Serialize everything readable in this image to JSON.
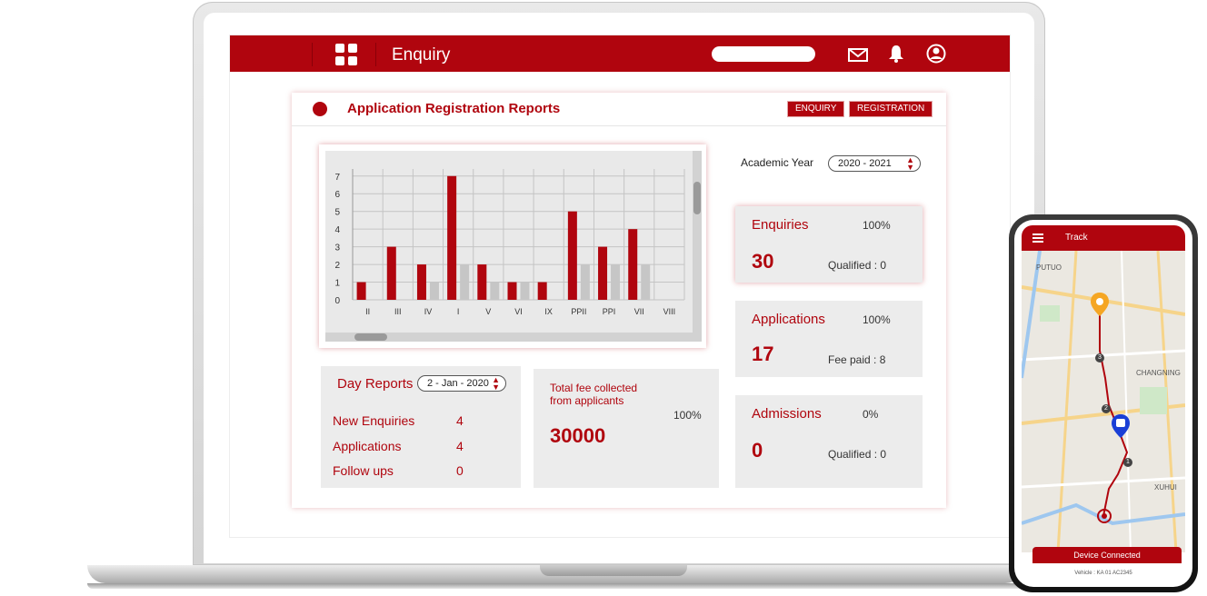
{
  "header": {
    "title": "Enquiry",
    "search_placeholder": ""
  },
  "card": {
    "title": "Application Registration Reports",
    "buttons": {
      "enquiry": "ENQUIRY",
      "registration": "REGISTRATION"
    }
  },
  "academic_year": {
    "label": "Academic Year",
    "value": "2020 - 2021"
  },
  "chart_data": {
    "type": "bar",
    "categories": [
      "II",
      "III",
      "IV",
      "I",
      "V",
      "VI",
      "IX",
      "PPII",
      "PPI",
      "VII",
      "VIII"
    ],
    "series": [
      {
        "values": [
          1,
          3,
          2,
          7,
          2,
          1,
          1,
          5,
          3,
          4,
          0
        ],
        "color": "#b0050e"
      },
      {
        "values": [
          0,
          0,
          1,
          2,
          1,
          1,
          0,
          2,
          2,
          2,
          0
        ],
        "color": "#c6c6c6"
      }
    ],
    "y_ticks": [
      "0",
      "1",
      "2",
      "3",
      "4",
      "5",
      "6",
      "7"
    ],
    "ylim": [
      0,
      7.4
    ],
    "grid": true
  },
  "stats": {
    "enquiries": {
      "label": "Enquiries",
      "pct": "100%",
      "value": "30",
      "sub": "Qualified : 0"
    },
    "applications": {
      "label": "Applications",
      "pct": "100%",
      "value": "17",
      "sub": "Fee paid : 8"
    },
    "admissions": {
      "label": "Admissions",
      "pct": "0%",
      "value": "0",
      "sub": "Qualified : 0"
    }
  },
  "day_reports": {
    "title": "Day Reports",
    "date": "2 - Jan - 2020",
    "rows": [
      {
        "label": "New Enquiries",
        "value": "4"
      },
      {
        "label": "Applications",
        "value": "4"
      },
      {
        "label": "Follow ups",
        "value": "0"
      }
    ]
  },
  "fee": {
    "label": "Total fee collected from applicants",
    "pct": "100%",
    "value": "30000"
  },
  "phone": {
    "title": "Track",
    "map_labels": [
      "PUTUO",
      "CHANGNING",
      "XUHUI"
    ],
    "stops": [
      "3",
      "2",
      "1"
    ],
    "device_status": "Device Connected",
    "vehicle": "Vehicle : KA 01 AC2345"
  },
  "colors": {
    "brand": "#b0050e",
    "bar_secondary": "#c6c6c6",
    "panel": "#ececec"
  }
}
